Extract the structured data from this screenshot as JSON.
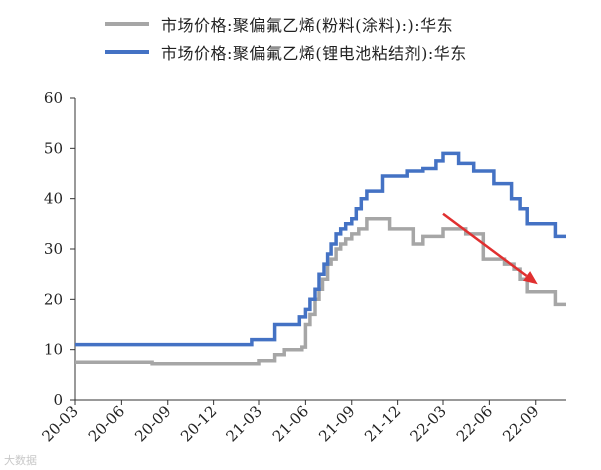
{
  "chart_data": {
    "type": "line",
    "title": "",
    "xlabel": "",
    "ylabel": "",
    "ylim": [
      0,
      60
    ],
    "yticks": [
      "0",
      "10",
      "20",
      "30",
      "40",
      "50",
      "60"
    ],
    "xticks": [
      "20-03",
      "20-06",
      "20-09",
      "20-12",
      "21-03",
      "21-06",
      "21-09",
      "21-12",
      "22-03",
      "22-06",
      "22-09"
    ],
    "xrange": [
      "2020-03-01",
      "2022-10-31"
    ],
    "grid": false,
    "legend": "top",
    "series": [
      {
        "name": "市场价格:聚偏氟乙烯(粉料(涂料):):华东",
        "color": "#a6a6a6",
        "step": true,
        "points": [
          [
            "2020-03-01",
            7.5
          ],
          [
            "2020-08-01",
            7.2
          ],
          [
            "2021-03-01",
            7.8
          ],
          [
            "2021-04-01",
            9.0
          ],
          [
            "2021-04-20",
            10.0
          ],
          [
            "2021-05-25",
            10.5
          ],
          [
            "2021-06-01",
            15.0
          ],
          [
            "2021-06-10",
            17.0
          ],
          [
            "2021-06-20",
            20.0
          ],
          [
            "2021-06-28",
            22.0
          ],
          [
            "2021-07-05",
            24.0
          ],
          [
            "2021-07-15",
            27.0
          ],
          [
            "2021-07-22",
            28.0
          ],
          [
            "2021-08-01",
            30.0
          ],
          [
            "2021-08-10",
            31.0
          ],
          [
            "2021-08-20",
            32.0
          ],
          [
            "2021-09-01",
            33.0
          ],
          [
            "2021-09-15",
            34.0
          ],
          [
            "2021-10-01",
            36.0
          ],
          [
            "2021-11-15",
            34.0
          ],
          [
            "2022-01-01",
            31.0
          ],
          [
            "2022-01-20",
            32.5
          ],
          [
            "2022-03-01",
            34.0
          ],
          [
            "2022-04-15",
            33.0
          ],
          [
            "2022-05-20",
            28.0
          ],
          [
            "2022-07-01",
            27.0
          ],
          [
            "2022-07-20",
            26.0
          ],
          [
            "2022-08-01",
            24.0
          ],
          [
            "2022-08-15",
            21.5
          ],
          [
            "2022-10-10",
            19.0
          ],
          [
            "2022-10-31",
            19.0
          ]
        ]
      },
      {
        "name": "市场价格:聚偏氟乙烯(锂电池粘结剂):华东",
        "color": "#4472c4",
        "step": true,
        "points": [
          [
            "2020-03-01",
            11.0
          ],
          [
            "2021-02-15",
            12.0
          ],
          [
            "2021-04-01",
            15.0
          ],
          [
            "2021-05-20",
            16.5
          ],
          [
            "2021-06-01",
            18.0
          ],
          [
            "2021-06-10",
            20.0
          ],
          [
            "2021-06-20",
            22.0
          ],
          [
            "2021-06-28",
            25.0
          ],
          [
            "2021-07-08",
            27.0
          ],
          [
            "2021-07-15",
            29.0
          ],
          [
            "2021-07-22",
            31.0
          ],
          [
            "2021-08-01",
            33.0
          ],
          [
            "2021-08-10",
            34.0
          ],
          [
            "2021-08-20",
            35.0
          ],
          [
            "2021-09-01",
            36.0
          ],
          [
            "2021-09-10",
            38.0
          ],
          [
            "2021-09-20",
            40.0
          ],
          [
            "2021-10-01",
            41.5
          ],
          [
            "2021-11-01",
            44.5
          ],
          [
            "2021-12-20",
            45.5
          ],
          [
            "2022-01-20",
            46.0
          ],
          [
            "2022-02-15",
            47.5
          ],
          [
            "2022-03-01",
            49.0
          ],
          [
            "2022-04-01",
            47.0
          ],
          [
            "2022-05-01",
            45.5
          ],
          [
            "2022-06-10",
            43.0
          ],
          [
            "2022-07-15",
            40.0
          ],
          [
            "2022-08-01",
            38.0
          ],
          [
            "2022-08-15",
            35.0
          ],
          [
            "2022-10-10",
            32.5
          ],
          [
            "2022-10-31",
            32.5
          ]
        ]
      }
    ],
    "annotations": [
      {
        "type": "arrow",
        "color": "#e03030",
        "from": [
          "2022-03-01",
          37.0
        ],
        "to": [
          "2022-09-05",
          23.0
        ]
      }
    ]
  },
  "watermark": "大数据"
}
